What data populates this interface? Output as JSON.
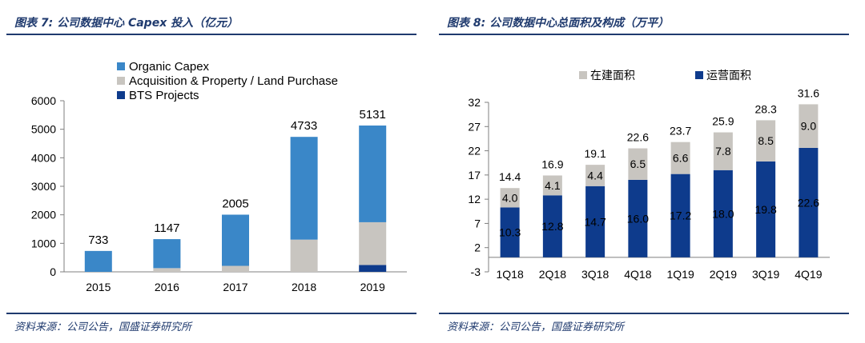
{
  "panels": [
    {
      "title": "图表 7: 公司数据中心 Capex 投入（亿元）",
      "source": "资料来源：公司公告，国盛证券研究所",
      "chart_data": {
        "type": "bar",
        "stacked": true,
        "categories": [
          "2015",
          "2016",
          "2017",
          "2018",
          "2019"
        ],
        "series": [
          {
            "name": "BTS Projects",
            "color": "#0e3b8c",
            "values": [
              0,
              0,
              0,
              0,
              240
            ]
          },
          {
            "name": "Acquisition & Property / Land Purchase",
            "color": "#c8c5c0",
            "values": [
              0,
              130,
              210,
              1130,
              1500
            ]
          },
          {
            "name": "Organic Capex",
            "color": "#3a87c8",
            "values": [
              733,
              1017,
              1795,
              3603,
              3391
            ]
          }
        ],
        "legend_order": [
          "Organic Capex",
          "Acquisition & Property / Land Purchase",
          "BTS Projects"
        ],
        "totals": [
          "733",
          "1147",
          "2005",
          "4733",
          "5131"
        ],
        "yticks": [
          "0",
          "1000",
          "2000",
          "3000",
          "4000",
          "5000",
          "6000"
        ],
        "ylim": [
          0,
          6000
        ],
        "legend_position": "top-left",
        "grid": false
      }
    },
    {
      "title": "图表 8: 公司数据中心总面积及构成（万平）",
      "source": "资料来源：公司公告，国盛证券研究所",
      "chart_data": {
        "type": "bar",
        "stacked": true,
        "categories": [
          "1Q18",
          "2Q18",
          "3Q18",
          "4Q18",
          "1Q19",
          "2Q19",
          "3Q19",
          "4Q19"
        ],
        "series": [
          {
            "name": "运营面积",
            "color": "#0e3b8c",
            "values": [
              10.3,
              12.8,
              14.7,
              16.0,
              17.2,
              18.0,
              19.8,
              22.6
            ],
            "labels": [
              "10.3",
              "12.8",
              "14.7",
              "16.0",
              "17.2",
              "18.0",
              "19.8",
              "22.6"
            ]
          },
          {
            "name": "在建面积",
            "color": "#c8c5c0",
            "values": [
              4.0,
              4.1,
              4.4,
              6.5,
              6.6,
              7.8,
              8.5,
              9.0
            ],
            "labels": [
              "4.0",
              "4.1",
              "4.4",
              "6.5",
              "6.6",
              "7.8",
              "8.5",
              "9.0"
            ]
          }
        ],
        "legend_order": [
          "在建面积",
          "运营面积"
        ],
        "totals": [
          "14.4",
          "16.9",
          "19.1",
          "22.6",
          "23.7",
          "25.9",
          "28.3",
          "31.6"
        ],
        "yticks": [
          "-3",
          "2",
          "7",
          "12",
          "17",
          "22",
          "27",
          "32"
        ],
        "ylim": [
          -3,
          32
        ],
        "legend_position": "top",
        "grid": false
      }
    }
  ]
}
